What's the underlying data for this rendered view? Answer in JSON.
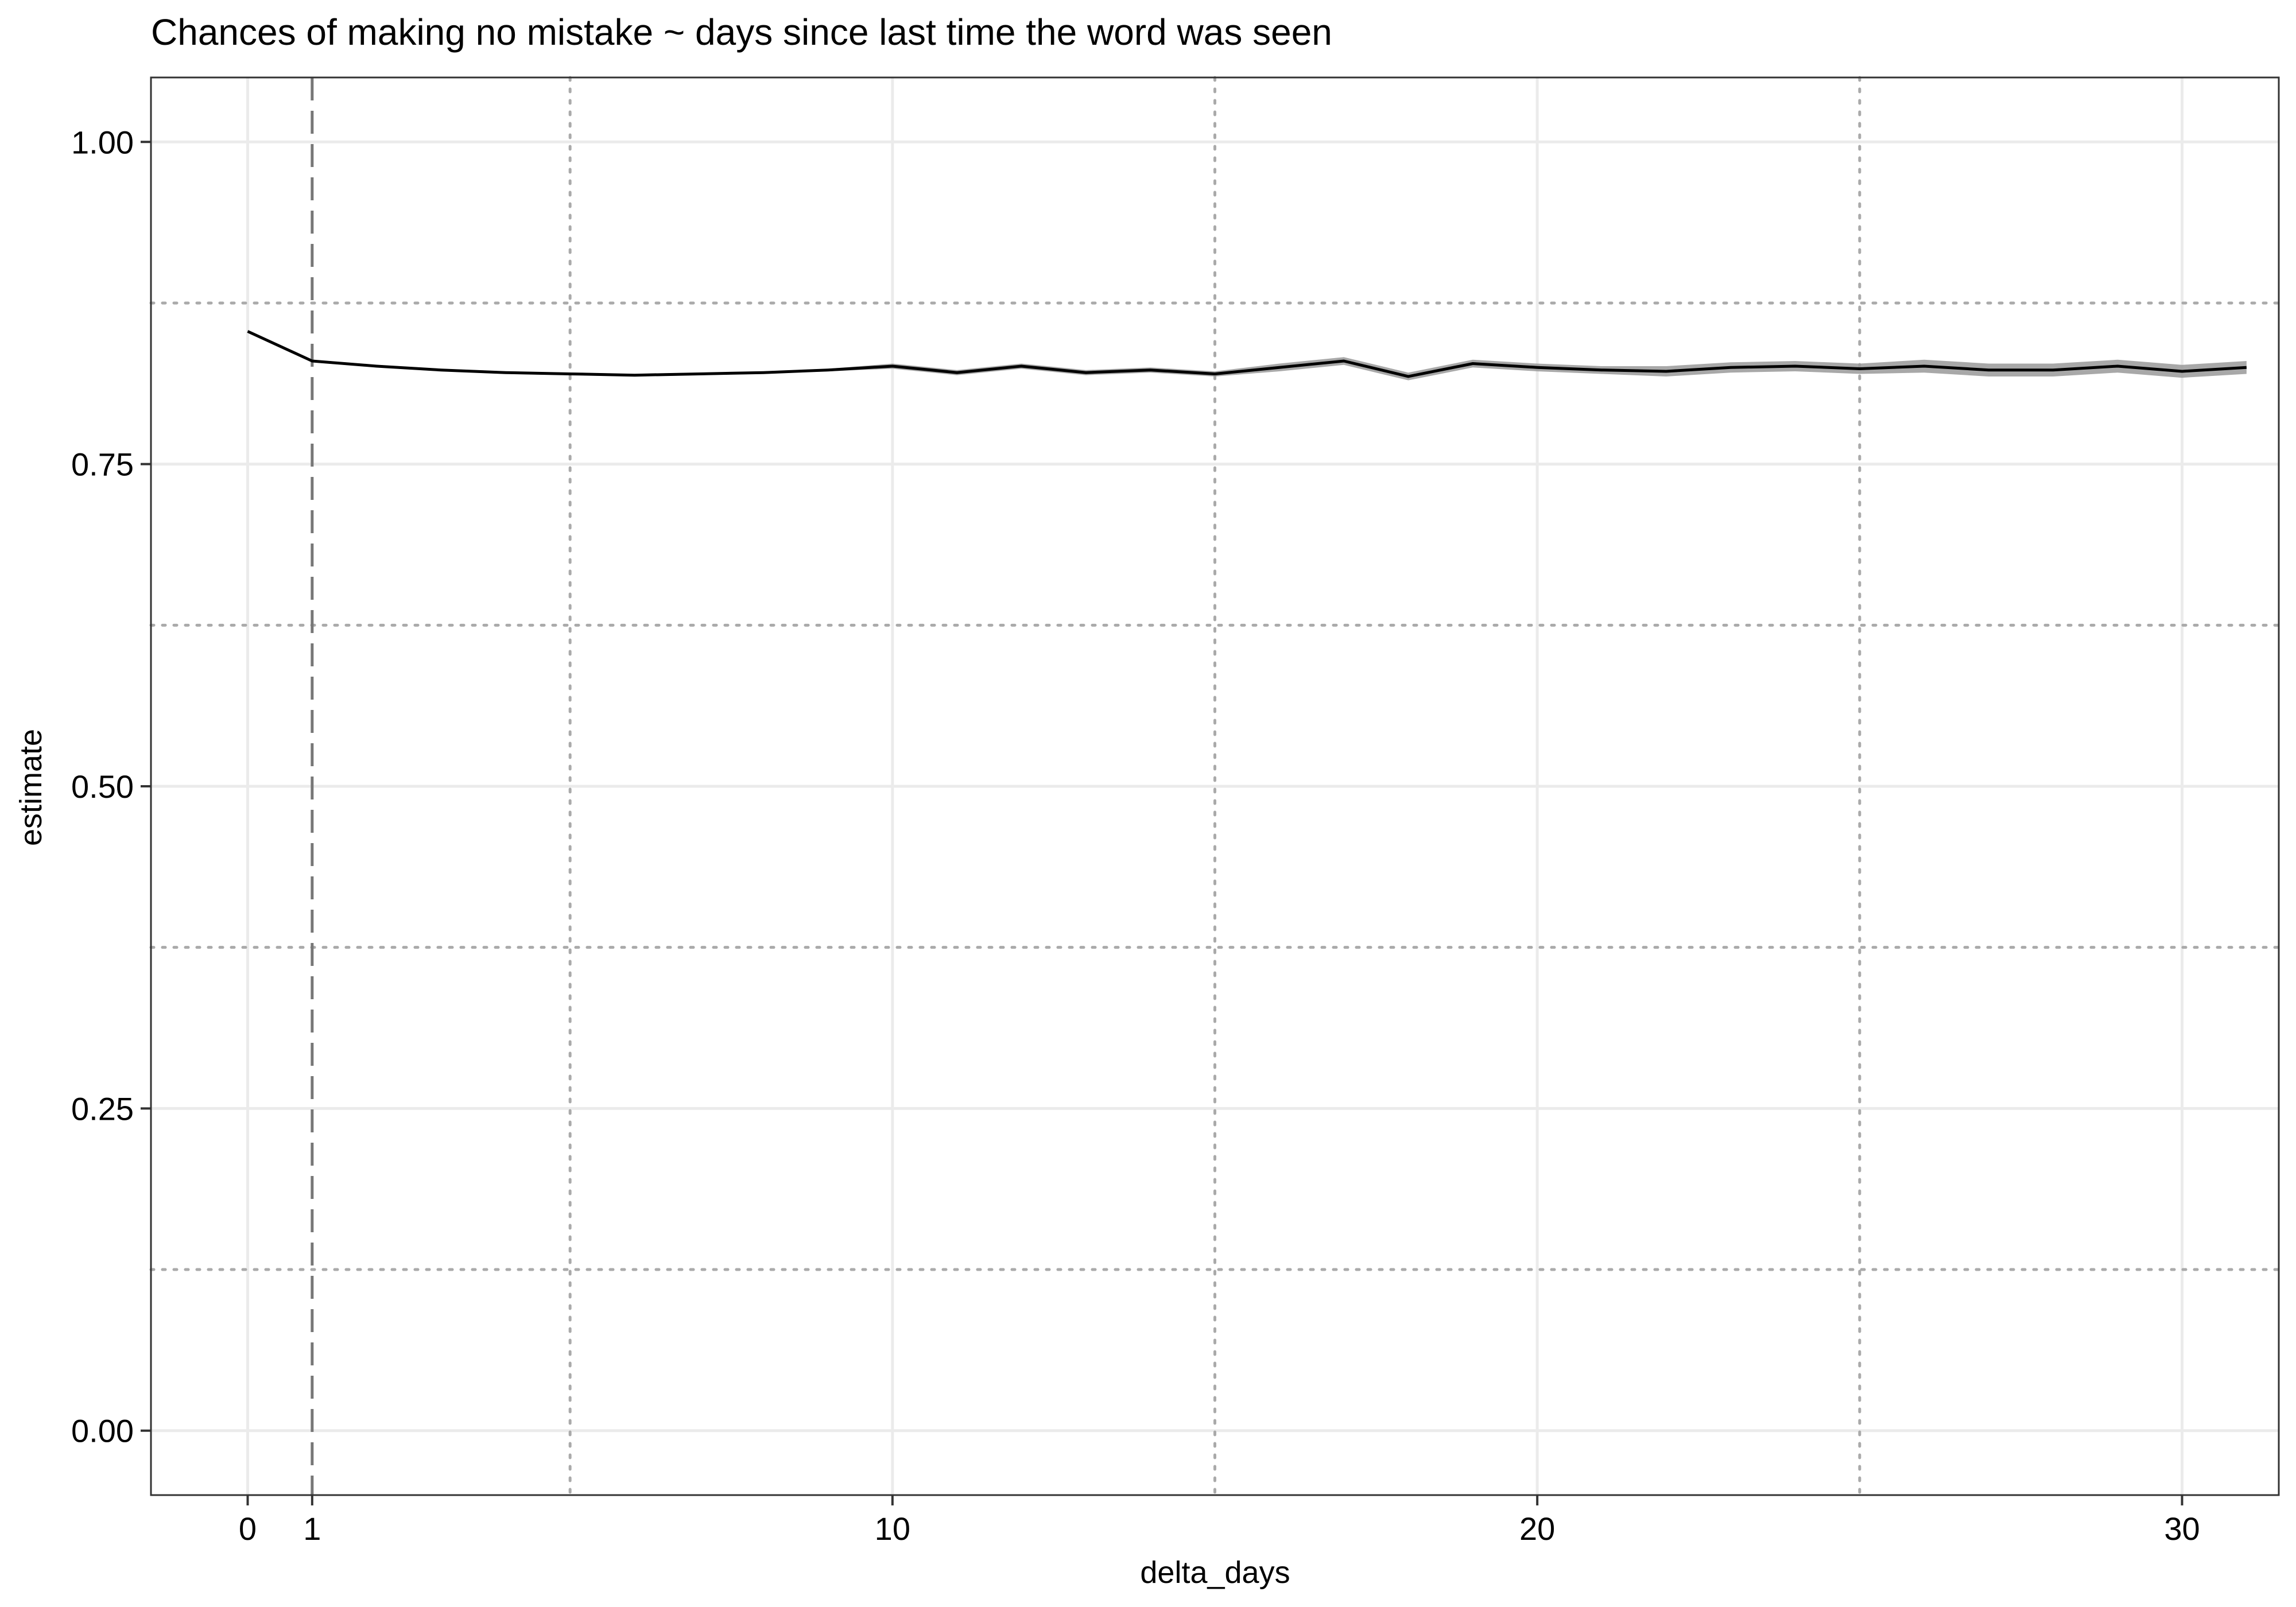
{
  "chart_data": {
    "type": "line",
    "title": "Chances of making no mistake ~ days since last time the word was seen",
    "xlabel": "delta_days",
    "ylabel": "estimate",
    "xlim": [
      -1.5,
      31.5
    ],
    "ylim": [
      -0.05,
      1.05
    ],
    "x_ticks": [
      0,
      1,
      10,
      20,
      30
    ],
    "y_ticks": [
      0.0,
      0.25,
      0.5,
      0.75,
      1.0
    ],
    "y_tick_labels": [
      "0.00",
      "0.25",
      "0.50",
      "0.75",
      "1.00"
    ],
    "major_gridlines_x": [
      0,
      10,
      20,
      30
    ],
    "major_gridlines_y": [
      0.0,
      0.25,
      0.5,
      0.75,
      1.0
    ],
    "dotted_reference_lines_x": [
      5,
      15,
      25
    ],
    "dotted_reference_lines_y": [
      0.125,
      0.375,
      0.625,
      0.875
    ],
    "dashed_reference_line_x": 1,
    "grid": true,
    "colors": {
      "line": "#000000",
      "ribbon": "#999999",
      "grid": "#ebebeb",
      "reference": "#aaaaaa",
      "dashed": "#777777"
    },
    "series": [
      {
        "x": [
          0,
          1,
          2,
          3,
          4,
          5,
          6,
          7,
          8,
          9,
          10,
          11,
          12,
          13,
          14,
          15,
          16,
          17,
          18,
          19,
          20,
          21,
          22,
          23,
          24,
          25,
          26,
          27,
          28,
          29,
          30,
          31
        ],
        "estimate": [
          0.853,
          0.83,
          0.826,
          0.823,
          0.821,
          0.82,
          0.819,
          0.82,
          0.821,
          0.823,
          0.826,
          0.821,
          0.826,
          0.821,
          0.823,
          0.82,
          0.825,
          0.83,
          0.818,
          0.828,
          0.825,
          0.823,
          0.822,
          0.825,
          0.826,
          0.824,
          0.826,
          0.823,
          0.823,
          0.826,
          0.822,
          0.825
        ],
        "lower": [
          0.852,
          0.829,
          0.825,
          0.822,
          0.82,
          0.819,
          0.818,
          0.819,
          0.82,
          0.822,
          0.824,
          0.819,
          0.824,
          0.819,
          0.821,
          0.818,
          0.822,
          0.827,
          0.815,
          0.825,
          0.822,
          0.82,
          0.818,
          0.821,
          0.822,
          0.82,
          0.821,
          0.818,
          0.818,
          0.821,
          0.817,
          0.82
        ],
        "upper": [
          0.854,
          0.831,
          0.827,
          0.824,
          0.822,
          0.821,
          0.82,
          0.821,
          0.822,
          0.824,
          0.828,
          0.823,
          0.828,
          0.823,
          0.825,
          0.822,
          0.828,
          0.833,
          0.821,
          0.831,
          0.828,
          0.826,
          0.826,
          0.829,
          0.83,
          0.828,
          0.831,
          0.828,
          0.828,
          0.831,
          0.827,
          0.83
        ]
      }
    ]
  }
}
